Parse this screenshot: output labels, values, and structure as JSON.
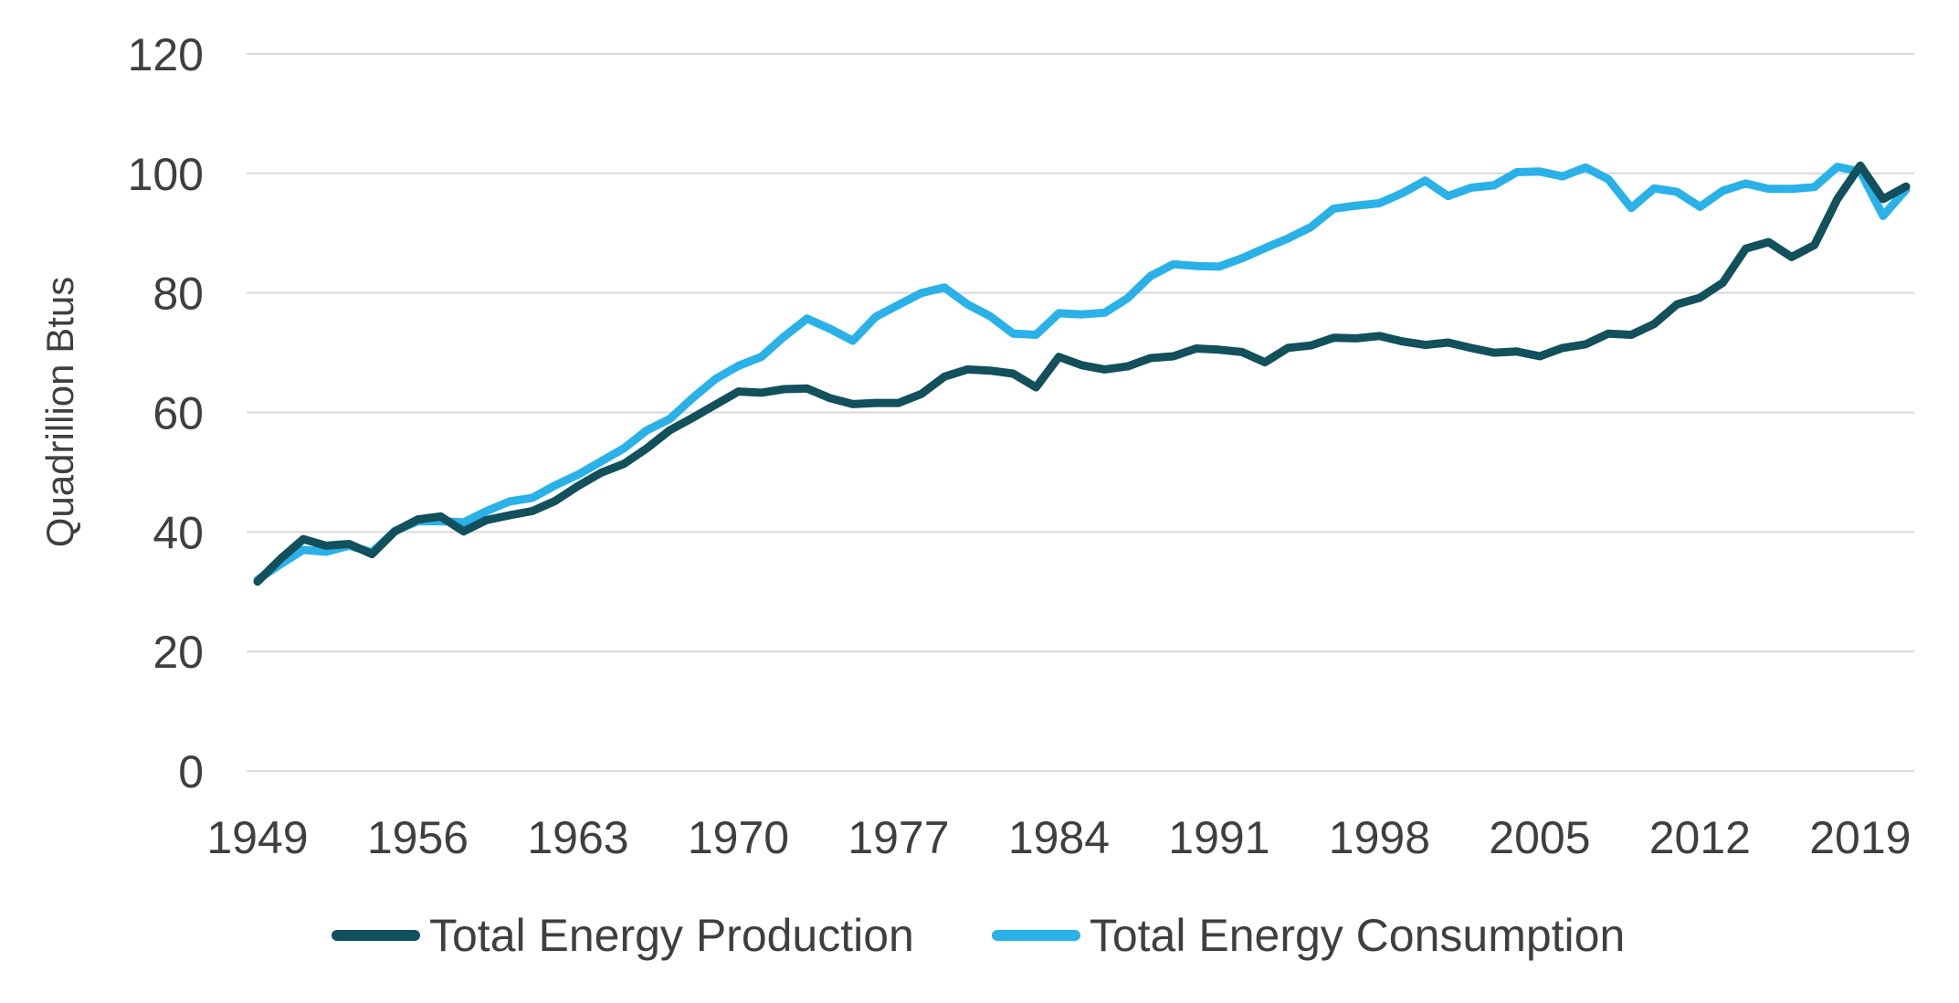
{
  "chart_data": {
    "type": "line",
    "title": "",
    "xlabel": "",
    "ylabel": "Quadrillion Btus",
    "unit": "Quadrillion Btus",
    "grid": "horizontal",
    "legend_position": "bottom",
    "ylim": [
      0,
      120
    ],
    "yticks": [
      0,
      20,
      40,
      60,
      80,
      100,
      120
    ],
    "xticks": [
      1949,
      1956,
      1963,
      1970,
      1977,
      1984,
      1991,
      1998,
      2005,
      2012,
      2019
    ],
    "x": [
      1949,
      1950,
      1951,
      1952,
      1953,
      1954,
      1955,
      1956,
      1957,
      1958,
      1959,
      1960,
      1961,
      1962,
      1963,
      1964,
      1965,
      1966,
      1967,
      1968,
      1969,
      1970,
      1971,
      1972,
      1973,
      1974,
      1975,
      1976,
      1977,
      1978,
      1979,
      1980,
      1981,
      1982,
      1983,
      1984,
      1985,
      1986,
      1987,
      1988,
      1989,
      1990,
      1991,
      1992,
      1993,
      1994,
      1995,
      1996,
      1997,
      1998,
      1999,
      2000,
      2001,
      2002,
      2003,
      2004,
      2005,
      2006,
      2007,
      2008,
      2009,
      2010,
      2011,
      2012,
      2013,
      2014,
      2015,
      2016,
      2017,
      2018,
      2019,
      2020,
      2021
    ],
    "series": [
      {
        "name": "Total Energy Production",
        "color": "#12505c",
        "values": [
          31.7,
          35.5,
          38.8,
          37.7,
          38.0,
          36.3,
          40.1,
          42.1,
          42.6,
          40.1,
          42.0,
          42.8,
          43.5,
          45.2,
          47.7,
          49.9,
          51.4,
          54.0,
          57.0,
          59.1,
          61.3,
          63.5,
          63.3,
          63.9,
          64.0,
          62.4,
          61.4,
          61.6,
          61.6,
          63.1,
          66.0,
          67.2,
          67.0,
          66.5,
          64.2,
          69.3,
          67.9,
          67.2,
          67.7,
          69.1,
          69.4,
          70.7,
          70.5,
          70.1,
          68.4,
          70.8,
          71.2,
          72.5,
          72.4,
          72.8,
          71.9,
          71.3,
          71.7,
          70.8,
          70.0,
          70.2,
          69.4,
          70.8,
          71.4,
          73.2,
          73.0,
          74.8,
          78.1,
          79.2,
          81.7,
          87.4,
          88.5,
          86.0,
          88.0,
          95.7,
          101.3,
          95.7,
          97.8
        ]
      },
      {
        "name": "Total Energy Consumption",
        "color": "#29b1e8",
        "values": [
          32.0,
          34.6,
          37.0,
          36.7,
          37.7,
          36.6,
          40.2,
          41.8,
          41.8,
          41.6,
          43.5,
          45.1,
          45.7,
          47.8,
          49.6,
          51.8,
          54.0,
          57.0,
          58.9,
          62.4,
          65.6,
          67.8,
          69.3,
          72.7,
          75.7,
          74.0,
          72.0,
          76.0,
          78.0,
          80.0,
          80.9,
          78.1,
          76.1,
          73.2,
          73.0,
          76.6,
          76.4,
          76.7,
          79.1,
          82.8,
          84.8,
          84.5,
          84.4,
          85.8,
          87.5,
          89.1,
          91.0,
          94.1,
          94.6,
          95.0,
          96.7,
          98.8,
          96.2,
          97.6,
          98.0,
          100.2,
          100.3,
          99.5,
          101.0,
          99.0,
          94.2,
          97.5,
          96.9,
          94.4,
          97.1,
          98.3,
          97.4,
          97.4,
          97.7,
          101.1,
          100.3,
          92.9,
          97.3
        ]
      }
    ]
  },
  "styles": {
    "text_color": "#3f3f3f",
    "gridline_color": "#d9d9d9",
    "background_color": "#ffffff"
  }
}
